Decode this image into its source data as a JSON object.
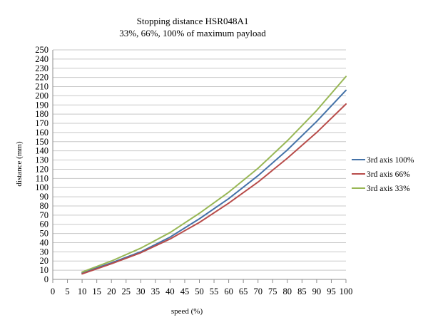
{
  "chart_data": {
    "type": "line",
    "title": "Stopping distance HSR048A1",
    "subtitle": "33%, 66%, 100% of maximum payload",
    "xlabel": "speed (%)",
    "ylabel": "distance (mm)",
    "xlim": [
      0,
      100
    ],
    "ylim": [
      0,
      250
    ],
    "xticks": [
      0,
      5,
      10,
      15,
      20,
      25,
      30,
      35,
      40,
      45,
      50,
      55,
      60,
      65,
      70,
      75,
      80,
      85,
      90,
      95,
      100
    ],
    "yticks": [
      0,
      10,
      20,
      30,
      40,
      50,
      60,
      70,
      80,
      90,
      100,
      110,
      120,
      130,
      140,
      150,
      160,
      170,
      180,
      190,
      200,
      210,
      220,
      230,
      240,
      250
    ],
    "grid": true,
    "legend_position": "right",
    "x": [
      10,
      20,
      30,
      40,
      50,
      60,
      70,
      80,
      90,
      100
    ],
    "series": [
      {
        "name": "3rd axis 100%",
        "color": "#4472a8",
        "values": [
          7,
          18,
          30,
          46,
          66,
          88,
          113,
          141,
          172,
          206
        ]
      },
      {
        "name": "3rd axis 66%",
        "color": "#b84c4a",
        "values": [
          6,
          17,
          29,
          44,
          62,
          83,
          106,
          132,
          160,
          191
        ]
      },
      {
        "name": "3rd axis 33%",
        "color": "#98b755",
        "values": [
          8,
          20,
          34,
          51,
          72,
          95,
          121,
          151,
          184,
          221
        ]
      }
    ]
  }
}
